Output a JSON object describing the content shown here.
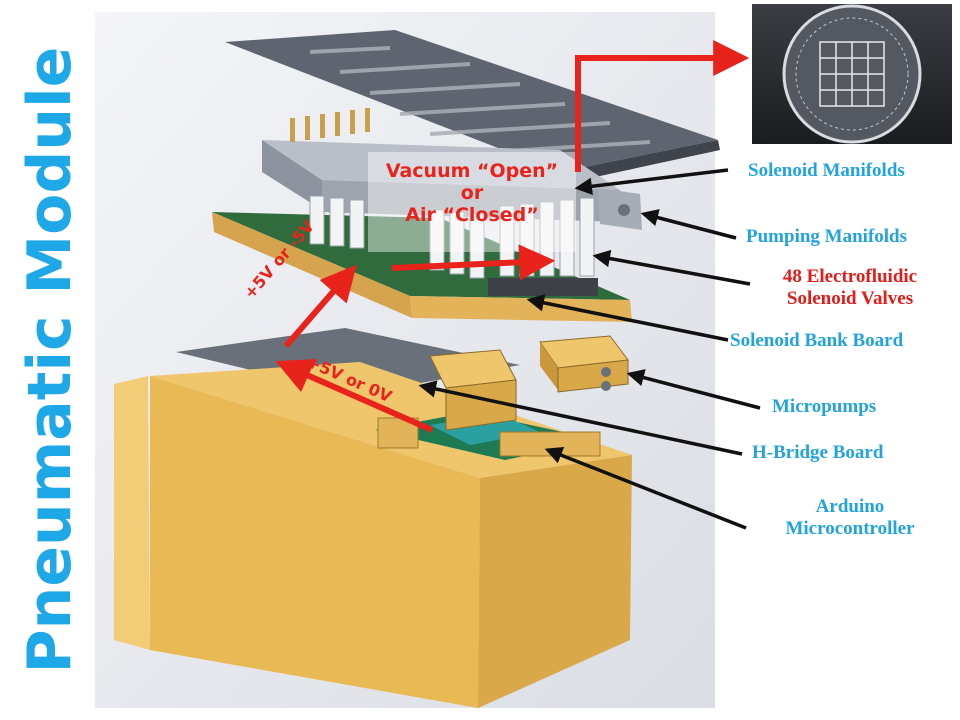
{
  "title": "Pneumatic Module",
  "labels": {
    "solenoid_manifolds": "Solenoid Manifolds",
    "pumping_manifolds": "Pumping Manifolds",
    "valves_line1": "48 Electrofluidic",
    "valves_line2": "Solenoid Valves",
    "bank_board": "Solenoid Bank Board",
    "micropumps": "Micropumps",
    "hbridge": "H-Bridge Board",
    "arduino_line1": "Arduino",
    "arduino_line2": "Microcontroller"
  },
  "annotations": {
    "vacuum_line1": "Vacuum “Open”",
    "vacuum_line2": "or",
    "vacuum_line3": "Air “Closed”",
    "voltage_valves": "+5V or -5V",
    "voltage_pumps": "+5V or 0V"
  },
  "colors": {
    "title_blue": "#1fa8e8",
    "label_blue": "#21a3df",
    "label_red": "#e41b17",
    "arrow_red": "#e8231c",
    "housing_gold": "#e9b955"
  },
  "icons": {
    "chip_photo": "microfluidic-chip-photo"
  }
}
